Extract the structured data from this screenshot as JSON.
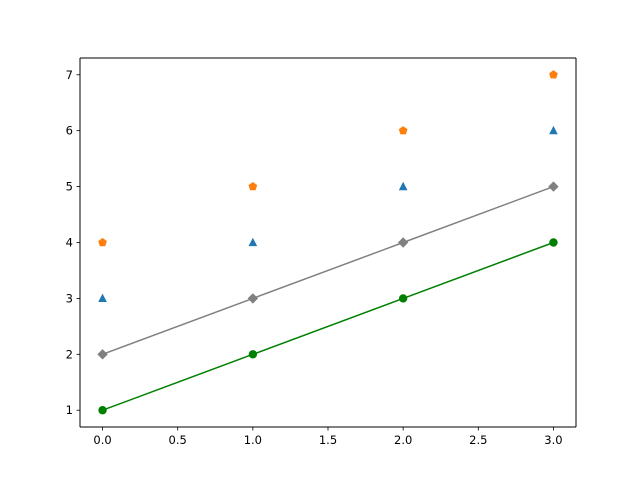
{
  "chart_data": {
    "type": "line",
    "title": "",
    "xlabel": "",
    "ylabel": "",
    "xlim": [
      -0.15,
      3.15
    ],
    "ylim": [
      0.7,
      7.3
    ],
    "xticks": [
      0.0,
      0.5,
      1.0,
      1.5,
      2.0,
      2.5,
      3.0
    ],
    "xtick_labels": [
      "0.0",
      "0.5",
      "1.0",
      "1.5",
      "2.0",
      "2.5",
      "3.0"
    ],
    "yticks": [
      1,
      2,
      3,
      4,
      5,
      6,
      7
    ],
    "ytick_labels": [
      "1",
      "2",
      "3",
      "4",
      "5",
      "6",
      "7"
    ],
    "grid": false,
    "legend": "none",
    "series": [
      {
        "x": [
          0,
          1,
          2,
          3
        ],
        "y": [
          1,
          2,
          3,
          4
        ],
        "color": "#008000",
        "marker": "circle",
        "line": true
      },
      {
        "x": [
          0,
          1,
          2,
          3
        ],
        "y": [
          2,
          3,
          4,
          5
        ],
        "color": "#808080",
        "marker": "diamond",
        "line": true
      },
      {
        "x": [
          0,
          1,
          2,
          3
        ],
        "y": [
          3,
          4,
          5,
          6
        ],
        "color": "#1f77b4",
        "marker": "triangle",
        "line": false
      },
      {
        "x": [
          0,
          1,
          2,
          3
        ],
        "y": [
          4,
          5,
          6,
          7
        ],
        "color": "#ff7f0e",
        "marker": "pentagon",
        "line": false
      }
    ]
  }
}
